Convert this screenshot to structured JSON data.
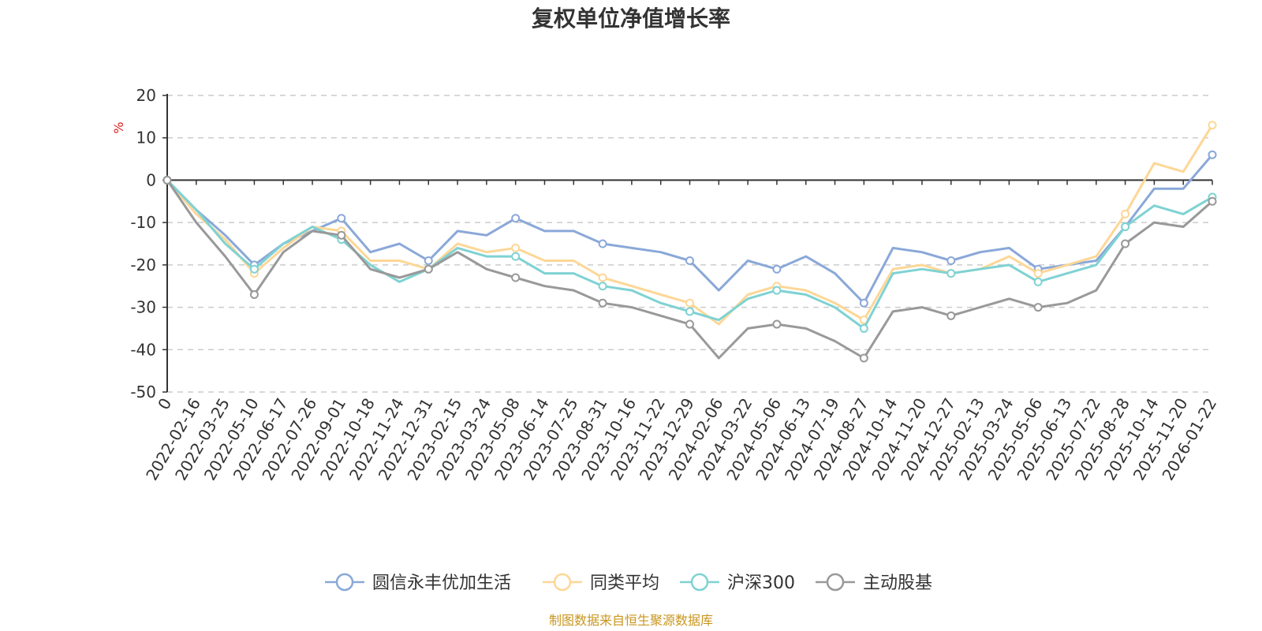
{
  "chart_data": {
    "type": "line",
    "title": "复权单位净值增长率",
    "ylabel": "%",
    "xlabel": "",
    "ylim": [
      -50,
      20
    ],
    "yticks": [
      20,
      10,
      0,
      -10,
      -20,
      -30,
      -40,
      -50
    ],
    "grid": true,
    "legend_position": "bottom",
    "x": [
      "0",
      "2022-02-16",
      "2022-03-25",
      "2022-05-10",
      "2022-06-17",
      "2022-07-26",
      "2022-09-01",
      "2022-10-18",
      "2022-11-24",
      "2022-12-31",
      "2023-02-15",
      "2023-03-24",
      "2023-05-08",
      "2023-06-14",
      "2023-07-25",
      "2023-08-31",
      "2023-10-16",
      "2023-11-22",
      "2023-12-29",
      "2024-02-06",
      "2024-03-22",
      "2024-05-06",
      "2024-06-13",
      "2024-07-19",
      "2024-08-27",
      "2024-10-14",
      "2024-11-20",
      "2024-12-27",
      "2025-02-13",
      "2025-03-24",
      "2025-05-06",
      "2025-06-13",
      "2025-07-22",
      "2025-08-28",
      "2025-10-14",
      "2025-11-20",
      "2026-01-22"
    ],
    "series": [
      {
        "name": "圆信永丰优加生活",
        "color": "#8aa8d8",
        "values": [
          0,
          -7,
          -13,
          -20,
          -15,
          -12,
          -9,
          -17,
          -15,
          -19,
          -12,
          -13,
          -9,
          -12,
          -12,
          -15,
          -16,
          -17,
          -19,
          -26,
          -19,
          -21,
          -18,
          -22,
          -29,
          -16,
          -17,
          -19,
          -17,
          -16,
          -21,
          -20,
          -19,
          -11,
          -2,
          -2,
          6
        ]
      },
      {
        "name": "同类平均",
        "color": "#fdd797",
        "values": [
          0,
          -8,
          -14,
          -22,
          -16,
          -11,
          -12,
          -19,
          -19,
          -21,
          -15,
          -17,
          -16,
          -19,
          -19,
          -23,
          -25,
          -27,
          -29,
          -34,
          -27,
          -25,
          -26,
          -29,
          -33,
          -21,
          -20,
          -22,
          -21,
          -18,
          -22,
          -20,
          -18,
          -8,
          4,
          2,
          13
        ]
      },
      {
        "name": "沪深300",
        "color": "#7fd2d3",
        "values": [
          0,
          -7,
          -15,
          -21,
          -15,
          -11,
          -14,
          -20,
          -24,
          -21,
          -16,
          -18,
          -18,
          -22,
          -22,
          -25,
          -26,
          -29,
          -31,
          -33,
          -28,
          -26,
          -27,
          -30,
          -35,
          -22,
          -21,
          -22,
          -21,
          -20,
          -24,
          -22,
          -20,
          -11,
          -6,
          -8,
          -4
        ]
      },
      {
        "name": "主动股基",
        "color": "#999999",
        "values": [
          0,
          -10,
          -18,
          -27,
          -17,
          -12,
          -13,
          -21,
          -23,
          -21,
          -17,
          -21,
          -23,
          -25,
          -26,
          -29,
          -30,
          -32,
          -34,
          -42,
          -35,
          -34,
          -35,
          -38,
          -42,
          -31,
          -30,
          -32,
          -30,
          -28,
          -30,
          -29,
          -26,
          -15,
          -10,
          -11,
          -5
        ]
      }
    ]
  },
  "footer": {
    "source": "制图数据来自恒生聚源数据库"
  }
}
